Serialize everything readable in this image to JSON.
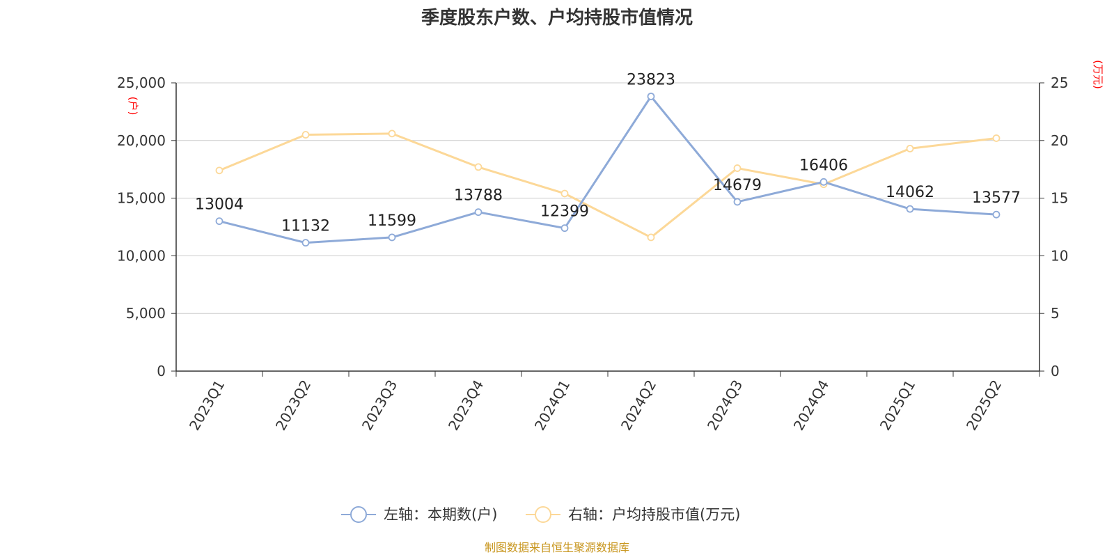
{
  "chart_data": {
    "type": "line",
    "title": "季度股东户数、户均持股市值情况",
    "categories": [
      "2023Q1",
      "2023Q2",
      "2023Q3",
      "2023Q4",
      "2024Q1",
      "2024Q2",
      "2024Q3",
      "2024Q4",
      "2025Q1",
      "2025Q2"
    ],
    "left_axis": {
      "unit": "(户)",
      "ylim": [
        0,
        25000
      ],
      "ticks": [
        "0",
        "5,000",
        "10,000",
        "15,000",
        "20,000",
        "25,000"
      ]
    },
    "right_axis": {
      "unit": "(万元)",
      "ylim": [
        0,
        25
      ],
      "ticks": [
        "0",
        "5",
        "10",
        "15",
        "20",
        "25"
      ]
    },
    "series": [
      {
        "name": "左轴：本期数(户)",
        "axis": "left",
        "color": "#8eaad8",
        "values": [
          13004,
          11132,
          11599,
          13788,
          12399,
          23823,
          14679,
          16406,
          14062,
          13577
        ],
        "labels_shown": true
      },
      {
        "name": "右轴：户均持股市值(万元)",
        "axis": "right",
        "color": "#fcd898",
        "values": [
          17.4,
          20.5,
          20.6,
          17.7,
          15.4,
          11.6,
          17.6,
          16.2,
          19.3,
          20.2
        ],
        "labels_shown": false
      }
    ],
    "grid": true,
    "legend_position": "bottom-center",
    "source": "制图数据来自恒生聚源数据库"
  }
}
